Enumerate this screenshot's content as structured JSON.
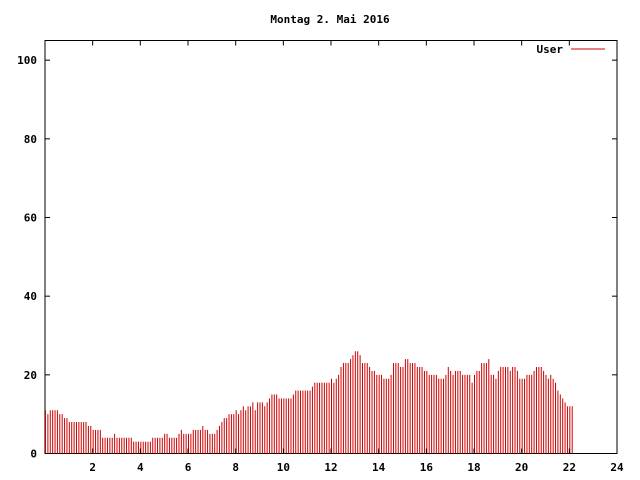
{
  "chart_data": {
    "type": "bar",
    "title": "Montag 2. Mai 2016",
    "xlabel": "",
    "ylabel": "",
    "xlim": [
      0,
      24
    ],
    "ylim": [
      0,
      105
    ],
    "xticks": [
      2,
      4,
      6,
      8,
      10,
      12,
      14,
      16,
      18,
      20,
      22,
      24
    ],
    "yticks": [
      0,
      20,
      40,
      60,
      80,
      100
    ],
    "grid": false,
    "legend": {
      "position": "top-right"
    },
    "series": [
      {
        "name": "User",
        "color": "#cc0000",
        "bar_interval_hours": 0.1,
        "values": [
          11,
          10,
          11,
          11,
          11,
          11,
          10,
          10,
          9,
          9,
          8,
          8,
          8,
          8,
          8,
          8,
          8,
          8,
          7,
          7,
          6,
          6,
          6,
          6,
          4,
          4,
          4,
          4,
          4,
          5,
          4,
          4,
          4,
          4,
          4,
          4,
          4,
          3,
          3,
          3,
          3,
          3,
          3,
          3,
          3,
          4,
          4,
          4,
          4,
          4,
          5,
          5,
          4,
          4,
          4,
          4,
          5,
          6,
          5,
          5,
          5,
          5,
          6,
          6,
          6,
          6,
          7,
          6,
          6,
          5,
          5,
          5,
          6,
          7,
          8,
          9,
          9,
          10,
          10,
          10,
          11,
          10,
          11,
          12,
          11,
          12,
          12,
          13,
          11,
          13,
          13,
          13,
          12,
          13,
          14,
          15,
          15,
          15,
          14,
          14,
          14,
          14,
          14,
          14,
          15,
          16,
          16,
          16,
          16,
          16,
          16,
          16,
          17,
          18,
          18,
          18,
          18,
          18,
          18,
          18,
          19,
          18,
          19,
          20,
          22,
          23,
          23,
          23,
          24,
          25,
          26,
          26,
          25,
          23,
          23,
          23,
          22,
          21,
          21,
          20,
          20,
          20,
          19,
          19,
          19,
          20,
          23,
          23,
          23,
          22,
          22,
          24,
          24,
          23,
          23,
          23,
          22,
          22,
          22,
          21,
          21,
          20,
          20,
          20,
          20,
          19,
          19,
          19,
          20,
          22,
          21,
          20,
          21,
          21,
          21,
          20,
          20,
          20,
          20,
          18,
          20,
          21,
          21,
          23,
          23,
          23,
          24,
          20,
          20,
          19,
          21,
          22,
          22,
          22,
          22,
          21,
          22,
          22,
          21,
          19,
          19,
          19,
          20,
          20,
          20,
          21,
          22,
          22,
          22,
          21,
          20,
          19,
          20,
          19,
          18,
          16,
          15,
          14,
          13,
          12,
          12,
          12
        ]
      }
    ]
  }
}
